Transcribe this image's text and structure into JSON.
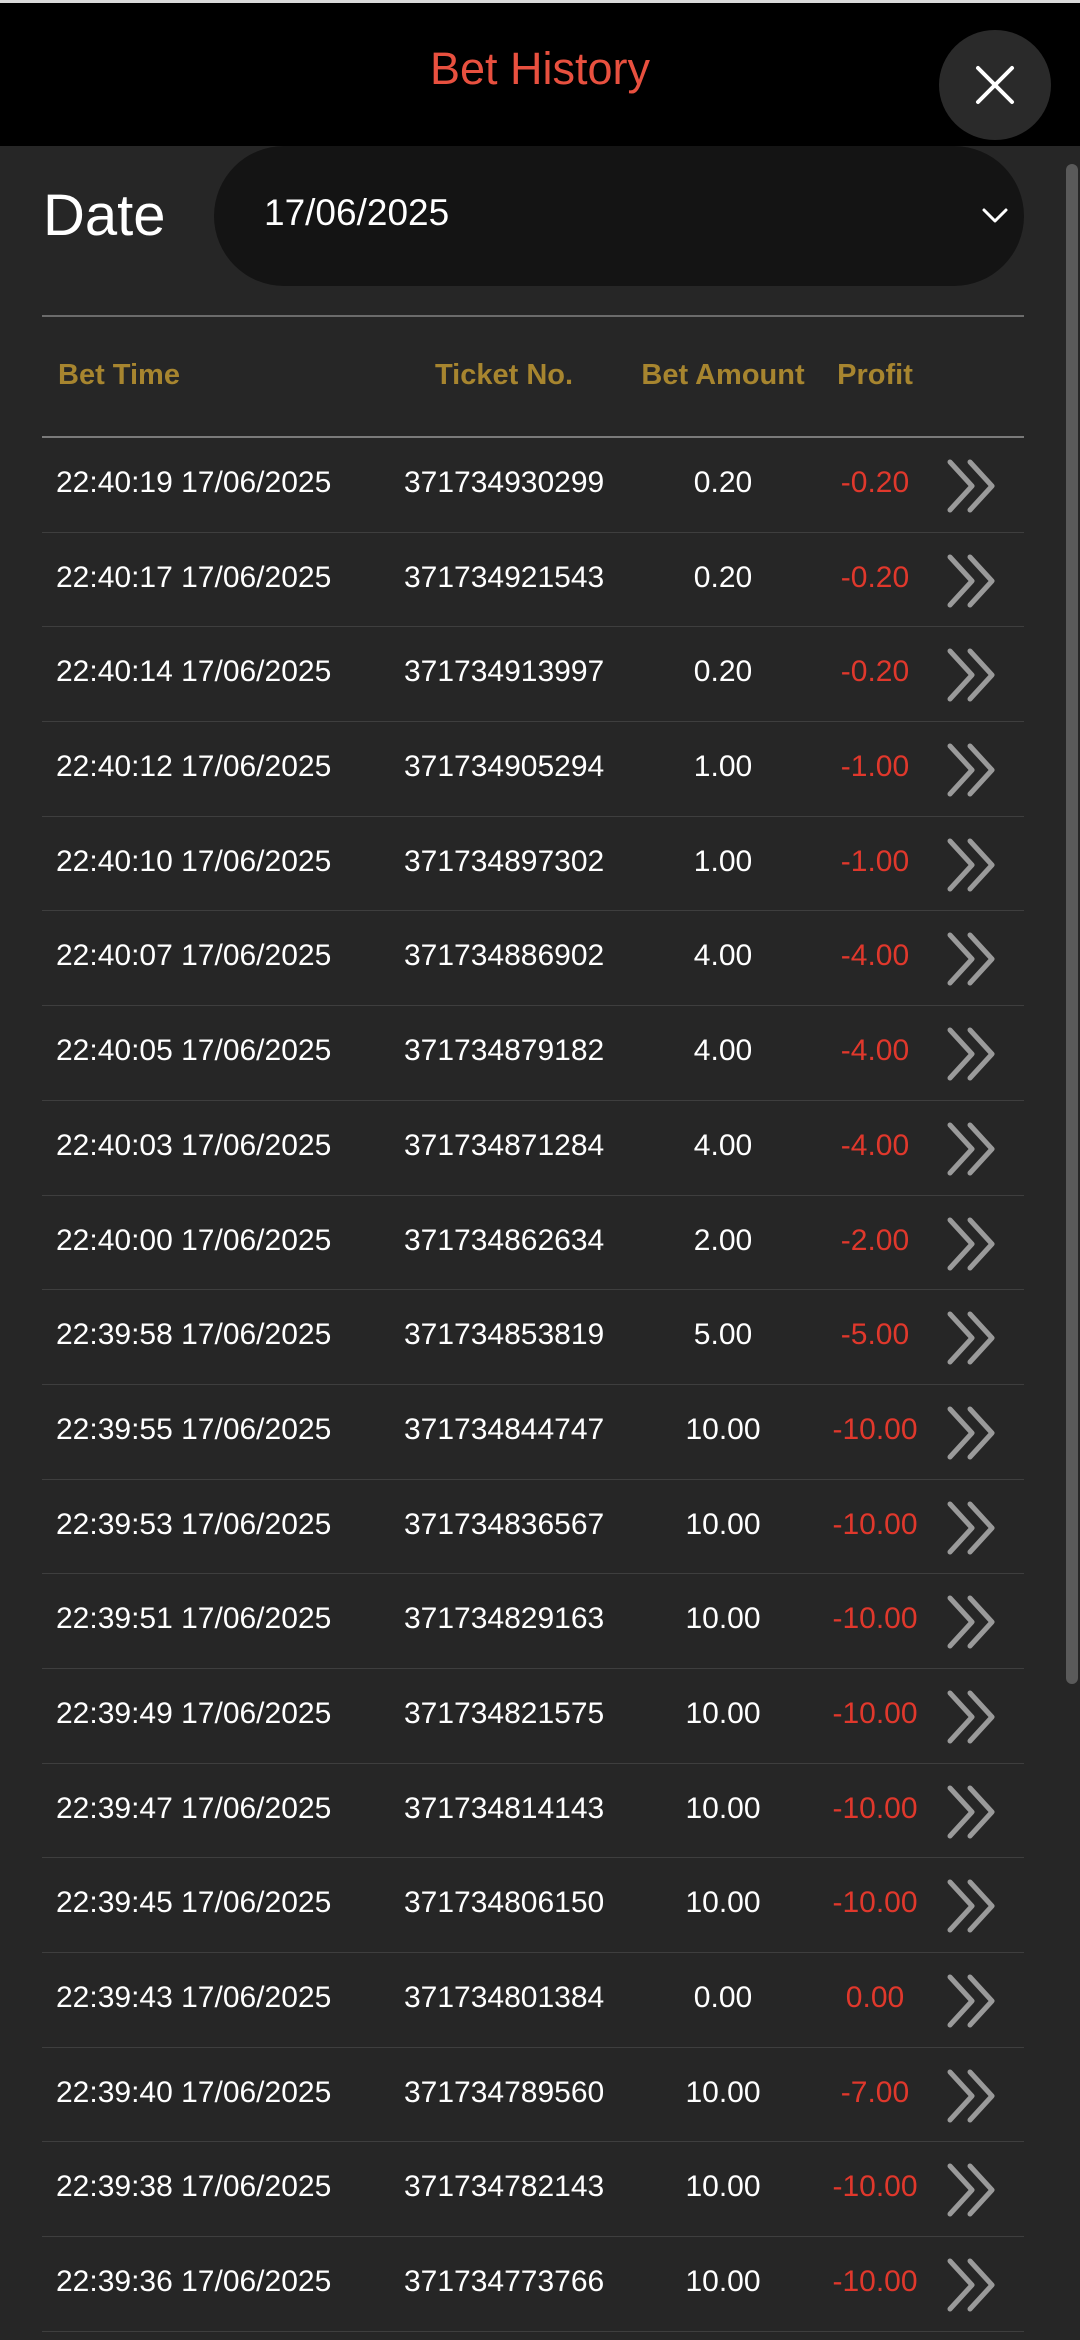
{
  "header": {
    "title": "Bet History",
    "close_icon": "close-icon"
  },
  "date_filter": {
    "label": "Date",
    "value": "17/06/2025",
    "chevron_icon": "chevron-down-icon"
  },
  "table": {
    "columns": {
      "bet_time": "Bet Time",
      "ticket_no": "Ticket No.",
      "bet_amount": "Bet Amount",
      "profit": "Profit"
    },
    "rows": [
      {
        "time": "22:40:19 17/06/2025",
        "ticket": "371734930299",
        "amount": "0.20",
        "profit": "-0.20"
      },
      {
        "time": "22:40:17 17/06/2025",
        "ticket": "371734921543",
        "amount": "0.20",
        "profit": "-0.20"
      },
      {
        "time": "22:40:14 17/06/2025",
        "ticket": "371734913997",
        "amount": "0.20",
        "profit": "-0.20"
      },
      {
        "time": "22:40:12 17/06/2025",
        "ticket": "371734905294",
        "amount": "1.00",
        "profit": "-1.00"
      },
      {
        "time": "22:40:10 17/06/2025",
        "ticket": "371734897302",
        "amount": "1.00",
        "profit": "-1.00"
      },
      {
        "time": "22:40:07 17/06/2025",
        "ticket": "371734886902",
        "amount": "4.00",
        "profit": "-4.00"
      },
      {
        "time": "22:40:05 17/06/2025",
        "ticket": "371734879182",
        "amount": "4.00",
        "profit": "-4.00"
      },
      {
        "time": "22:40:03 17/06/2025",
        "ticket": "371734871284",
        "amount": "4.00",
        "profit": "-4.00"
      },
      {
        "time": "22:40:00 17/06/2025",
        "ticket": "371734862634",
        "amount": "2.00",
        "profit": "-2.00"
      },
      {
        "time": "22:39:58 17/06/2025",
        "ticket": "371734853819",
        "amount": "5.00",
        "profit": "-5.00"
      },
      {
        "time": "22:39:55 17/06/2025",
        "ticket": "371734844747",
        "amount": "10.00",
        "profit": "-10.00"
      },
      {
        "time": "22:39:53 17/06/2025",
        "ticket": "371734836567",
        "amount": "10.00",
        "profit": "-10.00"
      },
      {
        "time": "22:39:51 17/06/2025",
        "ticket": "371734829163",
        "amount": "10.00",
        "profit": "-10.00"
      },
      {
        "time": "22:39:49 17/06/2025",
        "ticket": "371734821575",
        "amount": "10.00",
        "profit": "-10.00"
      },
      {
        "time": "22:39:47 17/06/2025",
        "ticket": "371734814143",
        "amount": "10.00",
        "profit": "-10.00"
      },
      {
        "time": "22:39:45 17/06/2025",
        "ticket": "371734806150",
        "amount": "10.00",
        "profit": "-10.00"
      },
      {
        "time": "22:39:43 17/06/2025",
        "ticket": "371734801384",
        "amount": "0.00",
        "profit": "0.00"
      },
      {
        "time": "22:39:40 17/06/2025",
        "ticket": "371734789560",
        "amount": "10.00",
        "profit": "-7.00"
      },
      {
        "time": "22:39:38 17/06/2025",
        "ticket": "371734782143",
        "amount": "10.00",
        "profit": "-10.00"
      },
      {
        "time": "22:39:36 17/06/2025",
        "ticket": "371734773766",
        "amount": "10.00",
        "profit": "-10.00"
      }
    ],
    "row_action_icon": "double-chevron-right-icon"
  },
  "colors": {
    "title": "#e8503f",
    "header_text": "#a7852f",
    "profit_negative": "#e0382c",
    "background": "#262626",
    "header_bg": "#000000"
  }
}
